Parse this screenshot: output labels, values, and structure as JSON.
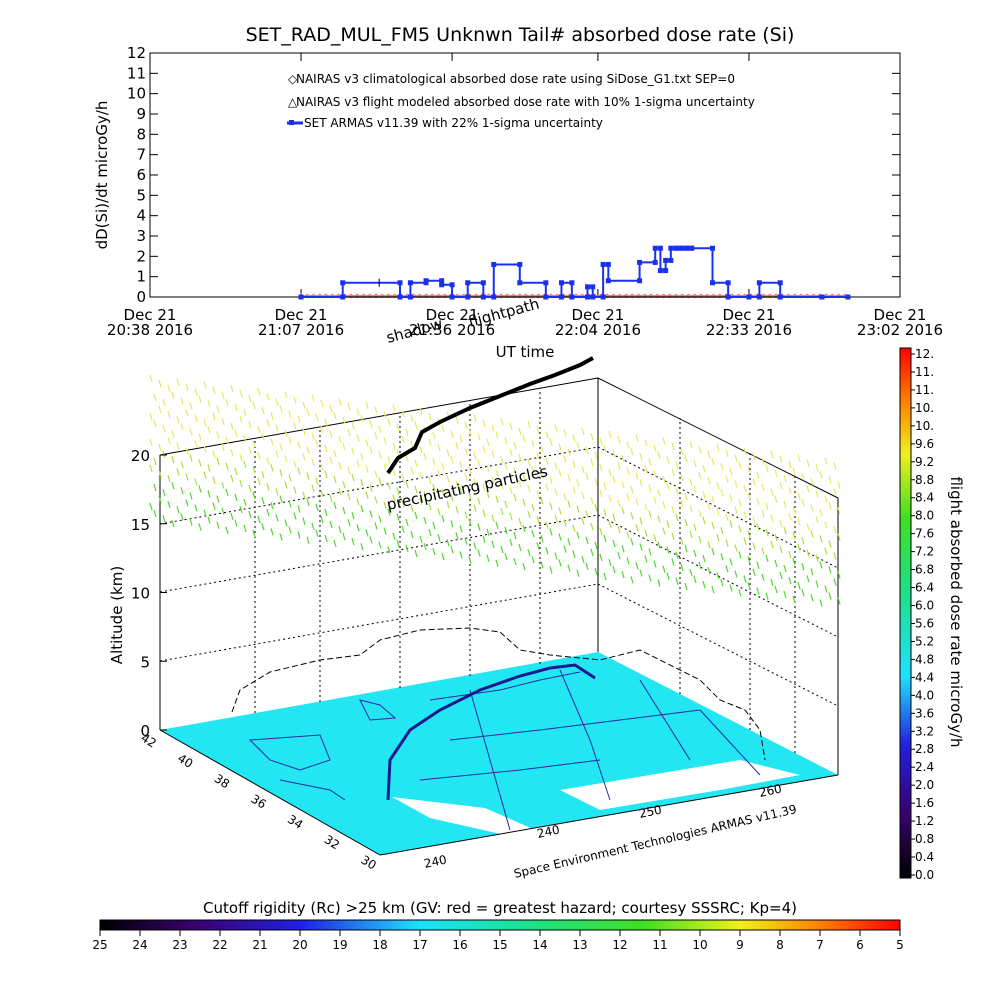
{
  "chart_data": [
    {
      "type": "line",
      "title": "SET_RAD_MUL_FM5 Unknwn Tail#  absorbed dose rate (Si)",
      "xlabel": "UT time",
      "ylabel": "dD(Si)/dt microGy/h",
      "ylim": [
        0,
        12
      ],
      "yticks": [
        "0",
        "1",
        "2",
        "3",
        "4",
        "5",
        "6",
        "7",
        "8",
        "9",
        "10",
        "11",
        "12"
      ],
      "xticks": [
        {
          "t": 0,
          "l1": "Dec 21",
          "l2": "20:38 2016"
        },
        {
          "t": 29,
          "l1": "Dec 21",
          "l2": "21:07 2016"
        },
        {
          "t": 58,
          "l1": "Dec 21",
          "l2": "21:36 2016"
        },
        {
          "t": 86,
          "l1": "Dec 21",
          "l2": "22:04 2016"
        },
        {
          "t": 115,
          "l1": "Dec 21",
          "l2": "22:33 2016"
        },
        {
          "t": 144,
          "l1": "Dec 21",
          "l2": "23:02 2016"
        }
      ],
      "xlim": [
        0,
        144
      ],
      "series": [
        {
          "name": "NAIRAS v3 climatological absorbed dose rate using SiDose_G1.txt SEP=0",
          "color": "#ff5a5a",
          "marker": "diamond",
          "x": [
            29,
            134
          ],
          "y": [
            0.05,
            0.05
          ]
        },
        {
          "name": "NAIRAS v3 flight modeled absorbed dose rate with 10% 1-sigma uncertainty",
          "color": "#202020",
          "marker": "triangle",
          "x": [
            29,
            134
          ],
          "y": [
            0.0,
            0.0
          ]
        },
        {
          "name": "SET ARMAS v11.39 with 22% 1-sigma uncertainty",
          "color": "#1a30f0",
          "marker": "square",
          "x": [
            29,
            37,
            37,
            48,
            48,
            50,
            50,
            53,
            53,
            56,
            56,
            58,
            58,
            61,
            61,
            64,
            64,
            66,
            66,
            71,
            71,
            76,
            76,
            79,
            79,
            81,
            81,
            84,
            84,
            85,
            85,
            87,
            87,
            88,
            88,
            94,
            94,
            97,
            97,
            98,
            98,
            99,
            99,
            100,
            100,
            101,
            101,
            102,
            102,
            103,
            103,
            104,
            104,
            108,
            108,
            111,
            111,
            115,
            115,
            117,
            117,
            121,
            121,
            129,
            129,
            134
          ],
          "y": [
            0,
            0,
            0.7,
            0.7,
            0,
            0,
            0.7,
            0.7,
            0.8,
            0.8,
            0.6,
            0.6,
            0,
            0,
            0.7,
            0.7,
            0,
            0,
            1.6,
            1.6,
            0.7,
            0.7,
            0,
            0,
            0.7,
            0.7,
            0,
            0,
            0.5,
            0.5,
            0,
            0,
            1.6,
            1.6,
            0.8,
            0.8,
            1.7,
            1.7,
            2.4,
            2.4,
            1.3,
            1.3,
            1.8,
            1.8,
            2.4,
            2.4,
            2.4,
            2.4,
            2.4,
            2.4,
            2.4,
            2.4,
            2.4,
            2.4,
            0.7,
            0.7,
            0,
            0,
            0,
            0,
            0.7,
            0.7,
            0,
            0,
            0,
            0
          ]
        }
      ]
    },
    {
      "type": "scatter",
      "title": "",
      "annotations": [
        "shadow",
        "flightpath",
        "precipitating particles"
      ],
      "zlabel": "Altitude (km)",
      "zlim": [
        0,
        20
      ],
      "zticks": [
        "0",
        "5",
        "10",
        "15",
        "20"
      ],
      "lat_ticks": [
        "42",
        "40",
        "38",
        "36",
        "34",
        "32",
        "30"
      ],
      "lon_ticks": [
        "240",
        "240",
        "250",
        "260"
      ],
      "credit": "Space Environment Technologies ARMAS v11.39",
      "colorbar": {
        "label": "flight absorbed dose rate microGy/h",
        "ticks": [
          "12.",
          "11.",
          "11.",
          "10.",
          "10.",
          "9.6",
          "9.2",
          "8.8",
          "8.4",
          "8.0",
          "7.6",
          "7.2",
          "6.8",
          "6.4",
          "6.0",
          "5.6",
          "5.2",
          "4.8",
          "4.4",
          "4.0",
          "3.6",
          "3.2",
          "2.8",
          "2.4",
          "2.0",
          "1.6",
          "1.2",
          "0.8",
          "0.4",
          "0.0"
        ]
      }
    }
  ],
  "cutoff_bar": {
    "label": "Cutoff rigidity (Rc) >25 km (GV: red = greatest hazard; courtesy SSSRC; Kp=4)",
    "ticks": [
      "25",
      "24",
      "23",
      "22",
      "21",
      "20",
      "19",
      "18",
      "17",
      "16",
      "15",
      "14",
      "13",
      "12",
      "11",
      "10",
      "9",
      "8",
      "7",
      "6",
      "5"
    ]
  },
  "colors": {
    "ground": "#22e6f2",
    "flightpath": "#000000",
    "armas": "#1a30f0",
    "nairas_clim": "#ff5a5a"
  }
}
